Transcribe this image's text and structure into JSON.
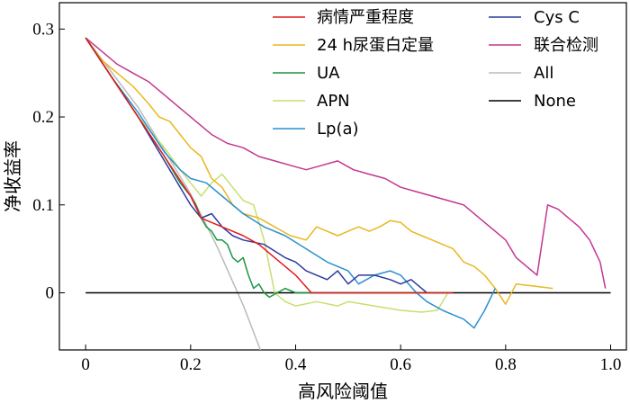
{
  "chart_data": {
    "type": "line",
    "xlabel": "高风险阈值",
    "ylabel": "净收益率",
    "xlim": [
      -0.05,
      1.03
    ],
    "ylim": [
      -0.065,
      0.33
    ],
    "xticks": [
      0,
      0.2,
      0.4,
      0.6,
      0.8,
      1.0
    ],
    "xtick_labels": [
      "0",
      "0.2",
      "0.4",
      "0.6",
      "0.8",
      "1.0"
    ],
    "yticks": [
      0,
      0.1,
      0.2,
      0.3
    ],
    "ytick_labels": [
      "0",
      "0.1",
      "0.2",
      "0.3"
    ],
    "grid": false,
    "legend": "top-right, two columns",
    "series": [
      {
        "name": "病情严重程度",
        "color": "#e41a1c",
        "x": [
          0,
          0.05,
          0.1,
          0.15,
          0.2,
          0.22,
          0.26,
          0.3,
          0.33,
          0.36,
          0.4,
          0.43,
          0.48,
          0.55,
          0.65,
          0.7
        ],
        "y": [
          0.29,
          0.245,
          0.2,
          0.155,
          0.11,
          0.085,
          0.075,
          0.065,
          0.055,
          0.04,
          0.02,
          0,
          0,
          0,
          0,
          0
        ]
      },
      {
        "name": "24 h尿蛋白定量",
        "color": "#e8b820",
        "x": [
          0,
          0.03,
          0.06,
          0.09,
          0.12,
          0.14,
          0.16,
          0.18,
          0.2,
          0.22,
          0.24,
          0.26,
          0.28,
          0.3,
          0.33,
          0.36,
          0.39,
          0.42,
          0.44,
          0.46,
          0.48,
          0.5,
          0.52,
          0.54,
          0.56,
          0.58,
          0.6,
          0.62,
          0.64,
          0.66,
          0.68,
          0.7,
          0.72,
          0.74,
          0.76,
          0.78,
          0.8,
          0.82,
          0.85,
          0.89
        ],
        "y": [
          0.29,
          0.265,
          0.25,
          0.235,
          0.215,
          0.2,
          0.195,
          0.18,
          0.165,
          0.155,
          0.13,
          0.12,
          0.1,
          0.09,
          0.085,
          0.075,
          0.065,
          0.06,
          0.075,
          0.07,
          0.065,
          0.07,
          0.075,
          0.07,
          0.075,
          0.082,
          0.08,
          0.07,
          0.065,
          0.06,
          0.055,
          0.05,
          0.035,
          0.03,
          0.02,
          0.005,
          -0.013,
          0.01,
          0.008,
          0.005
        ]
      },
      {
        "name": "UA",
        "color": "#1a9641",
        "x": [
          0,
          0.05,
          0.1,
          0.15,
          0.18,
          0.2,
          0.21,
          0.22,
          0.23,
          0.24,
          0.25,
          0.26,
          0.27,
          0.28,
          0.29,
          0.3,
          0.31,
          0.32,
          0.33,
          0.34,
          0.35,
          0.38,
          0.4,
          0.45,
          0.5,
          0.55,
          0.6,
          0.65,
          0.7
        ],
        "y": [
          0.29,
          0.245,
          0.2,
          0.155,
          0.125,
          0.11,
          0.1,
          0.085,
          0.075,
          0.07,
          0.06,
          0.06,
          0.055,
          0.04,
          0.035,
          0.04,
          0.02,
          0.005,
          0.01,
          0,
          -0.005,
          0.005,
          0,
          0,
          0,
          0,
          0,
          0,
          0
        ]
      },
      {
        "name": "APN",
        "color": "#c6e070",
        "x": [
          0,
          0.05,
          0.1,
          0.15,
          0.18,
          0.2,
          0.22,
          0.24,
          0.26,
          0.28,
          0.3,
          0.32,
          0.34,
          0.36,
          0.38,
          0.4,
          0.44,
          0.48,
          0.5,
          0.55,
          0.6,
          0.64,
          0.67,
          0.69
        ],
        "y": [
          0.29,
          0.245,
          0.2,
          0.165,
          0.14,
          0.125,
          0.11,
          0.125,
          0.135,
          0.12,
          0.105,
          0.1,
          0.06,
          0.0,
          -0.01,
          -0.015,
          -0.01,
          -0.015,
          -0.01,
          -0.015,
          -0.02,
          -0.022,
          -0.02,
          0.0
        ]
      },
      {
        "name": "Lp(a)",
        "color": "#2b8fd0",
        "x": [
          0,
          0.05,
          0.1,
          0.15,
          0.18,
          0.2,
          0.23,
          0.26,
          0.3,
          0.34,
          0.38,
          0.42,
          0.46,
          0.5,
          0.52,
          0.55,
          0.58,
          0.6,
          0.63,
          0.65,
          0.68,
          0.7,
          0.72,
          0.74,
          0.76,
          0.78
        ],
        "y": [
          0.29,
          0.245,
          0.205,
          0.16,
          0.14,
          0.13,
          0.125,
          0.11,
          0.09,
          0.075,
          0.065,
          0.05,
          0.035,
          0.025,
          0.01,
          0.02,
          0.025,
          0.02,
          0.0,
          -0.01,
          -0.02,
          -0.025,
          -0.03,
          -0.04,
          -0.02,
          0.005
        ]
      },
      {
        "name": "Cys C",
        "color": "#2c3a9e",
        "x": [
          0,
          0.05,
          0.1,
          0.15,
          0.2,
          0.22,
          0.24,
          0.26,
          0.28,
          0.3,
          0.34,
          0.38,
          0.4,
          0.42,
          0.44,
          0.46,
          0.48,
          0.5,
          0.52,
          0.55,
          0.58,
          0.6,
          0.62,
          0.64,
          0.65
        ],
        "y": [
          0.29,
          0.245,
          0.2,
          0.15,
          0.1,
          0.085,
          0.09,
          0.075,
          0.065,
          0.06,
          0.055,
          0.04,
          0.035,
          0.025,
          0.02,
          0.015,
          0.025,
          0.01,
          0.02,
          0.02,
          0.015,
          0.01,
          0.015,
          0.005,
          0
        ]
      },
      {
        "name": "联合检测",
        "color": "#c2378f",
        "x": [
          0,
          0.03,
          0.06,
          0.09,
          0.12,
          0.15,
          0.18,
          0.21,
          0.24,
          0.27,
          0.3,
          0.33,
          0.36,
          0.39,
          0.42,
          0.45,
          0.48,
          0.51,
          0.54,
          0.57,
          0.6,
          0.63,
          0.66,
          0.69,
          0.72,
          0.75,
          0.78,
          0.8,
          0.82,
          0.84,
          0.86,
          0.88,
          0.9,
          0.92,
          0.94,
          0.96,
          0.98,
          0.99
        ],
        "y": [
          0.29,
          0.275,
          0.26,
          0.25,
          0.24,
          0.225,
          0.21,
          0.195,
          0.18,
          0.17,
          0.165,
          0.155,
          0.15,
          0.145,
          0.14,
          0.145,
          0.15,
          0.14,
          0.135,
          0.13,
          0.12,
          0.115,
          0.11,
          0.105,
          0.1,
          0.085,
          0.07,
          0.06,
          0.04,
          0.03,
          0.02,
          0.1,
          0.095,
          0.085,
          0.075,
          0.06,
          0.035,
          0.005
        ]
      },
      {
        "name": "All",
        "color": "#bbbbbb",
        "x": [
          0,
          0.1,
          0.2,
          0.25,
          0.3,
          0.333
        ],
        "y": [
          0.29,
          0.211,
          0.1125,
          0.053,
          -0.014,
          -0.065
        ]
      },
      {
        "name": "None",
        "color": "#000000",
        "x": [
          0,
          1.0
        ],
        "y": [
          0,
          0
        ]
      }
    ]
  }
}
